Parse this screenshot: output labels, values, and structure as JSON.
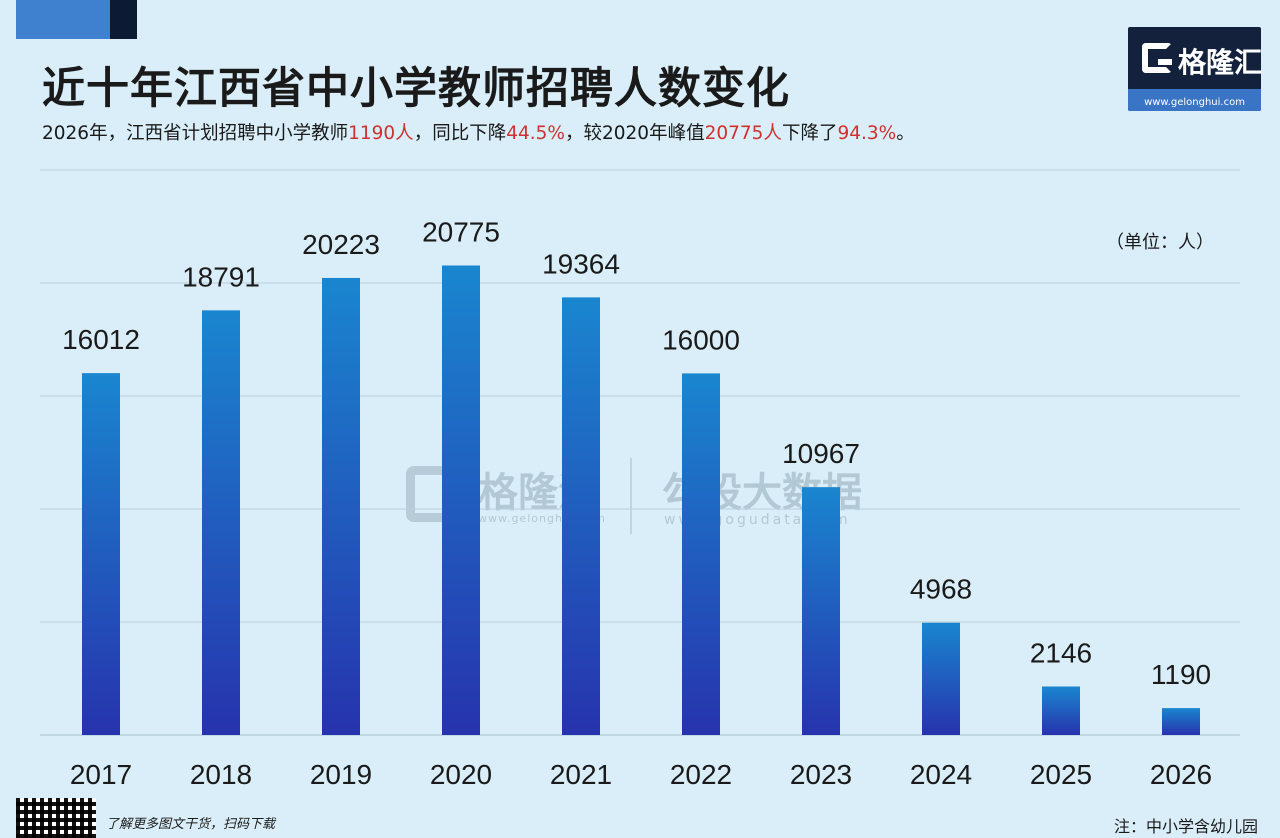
{
  "header": {
    "title": "近十年江西省中小学教师招聘人数变化",
    "subtitle_parts": [
      {
        "text": "2026年，江西省计划招聘中小学教师",
        "highlight": false
      },
      {
        "text": "1190人",
        "highlight": true
      },
      {
        "text": "，同比下降",
        "highlight": false
      },
      {
        "text": "44.5%",
        "highlight": true
      },
      {
        "text": "，较2020年峰值",
        "highlight": false
      },
      {
        "text": "20775人",
        "highlight": true
      },
      {
        "text": "下降了",
        "highlight": false
      },
      {
        "text": "94.3%",
        "highlight": true
      },
      {
        "text": "。",
        "highlight": false
      }
    ]
  },
  "logo": {
    "name": "格隆汇",
    "url": "www.gelonghui.com"
  },
  "watermark": {
    "left_name": "格隆汇",
    "left_url": "www.gelonghui.com",
    "right_name": "勾股大数据",
    "right_url": "www.gogudata.com"
  },
  "footer": {
    "promo": "了解更多图文干货，扫码下载",
    "note": "注：中小学含幼儿园"
  },
  "colors": {
    "background": "#d9eef8",
    "bar_top": "#1a86cf",
    "bar_bottom": "#2733ad",
    "highlight": "#d0312d",
    "gridline": "#b8cfdd"
  },
  "chart_data": {
    "type": "bar",
    "title": "近十年江西省中小学教师招聘人数变化",
    "unit_label": "（单位：人）",
    "categories": [
      "2017",
      "2018",
      "2019",
      "2020",
      "2021",
      "2022",
      "2023",
      "2024",
      "2025",
      "2026"
    ],
    "values": [
      16012,
      18791,
      20223,
      20775,
      19364,
      16000,
      10967,
      4968,
      2146,
      1190
    ],
    "ylim": [
      0,
      25000
    ],
    "grid": true,
    "data_labels": true,
    "legend": "none"
  }
}
